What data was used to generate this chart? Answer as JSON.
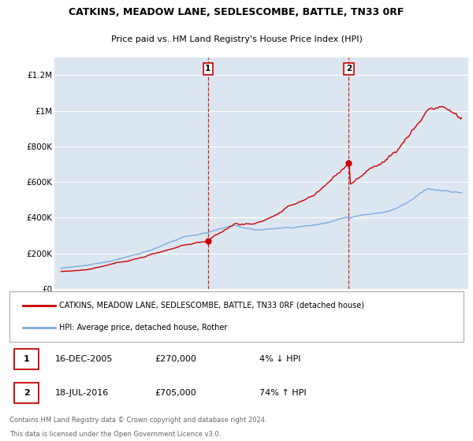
{
  "title": "CATKINS, MEADOW LANE, SEDLESCOMBE, BATTLE, TN33 0RF",
  "subtitle": "Price paid vs. HM Land Registry's House Price Index (HPI)",
  "ytick_values": [
    0,
    200000,
    400000,
    600000,
    800000,
    1000000,
    1200000
  ],
  "ylim": [
    0,
    1300000
  ],
  "xlim_start": 1994.5,
  "xlim_end": 2025.5,
  "transaction1_date": 2006.0,
  "transaction1_price": 270000,
  "transaction1_label": "1",
  "transaction2_date": 2016.55,
  "transaction2_price": 705000,
  "transaction2_label": "2",
  "legend_property": "CATKINS, MEADOW LANE, SEDLESCOMBE, BATTLE, TN33 0RF (detached house)",
  "legend_hpi": "HPI: Average price, detached house, Rother",
  "property_color": "#cc0000",
  "hpi_color": "#7aaadd",
  "background_color": "#dce6f1",
  "transaction1_info_label": "1",
  "transaction1_date_str": "16-DEC-2005",
  "transaction1_price_str": "£270,000",
  "transaction1_pct": "4% ↓ HPI",
  "transaction2_info_label": "2",
  "transaction2_date_str": "18-JUL-2016",
  "transaction2_price_str": "£705,000",
  "transaction2_pct": "74% ↑ HPI",
  "footnote_line1": "Contains HM Land Registry data © Crown copyright and database right 2024.",
  "footnote_line2": "This data is licensed under the Open Government Licence v3.0."
}
